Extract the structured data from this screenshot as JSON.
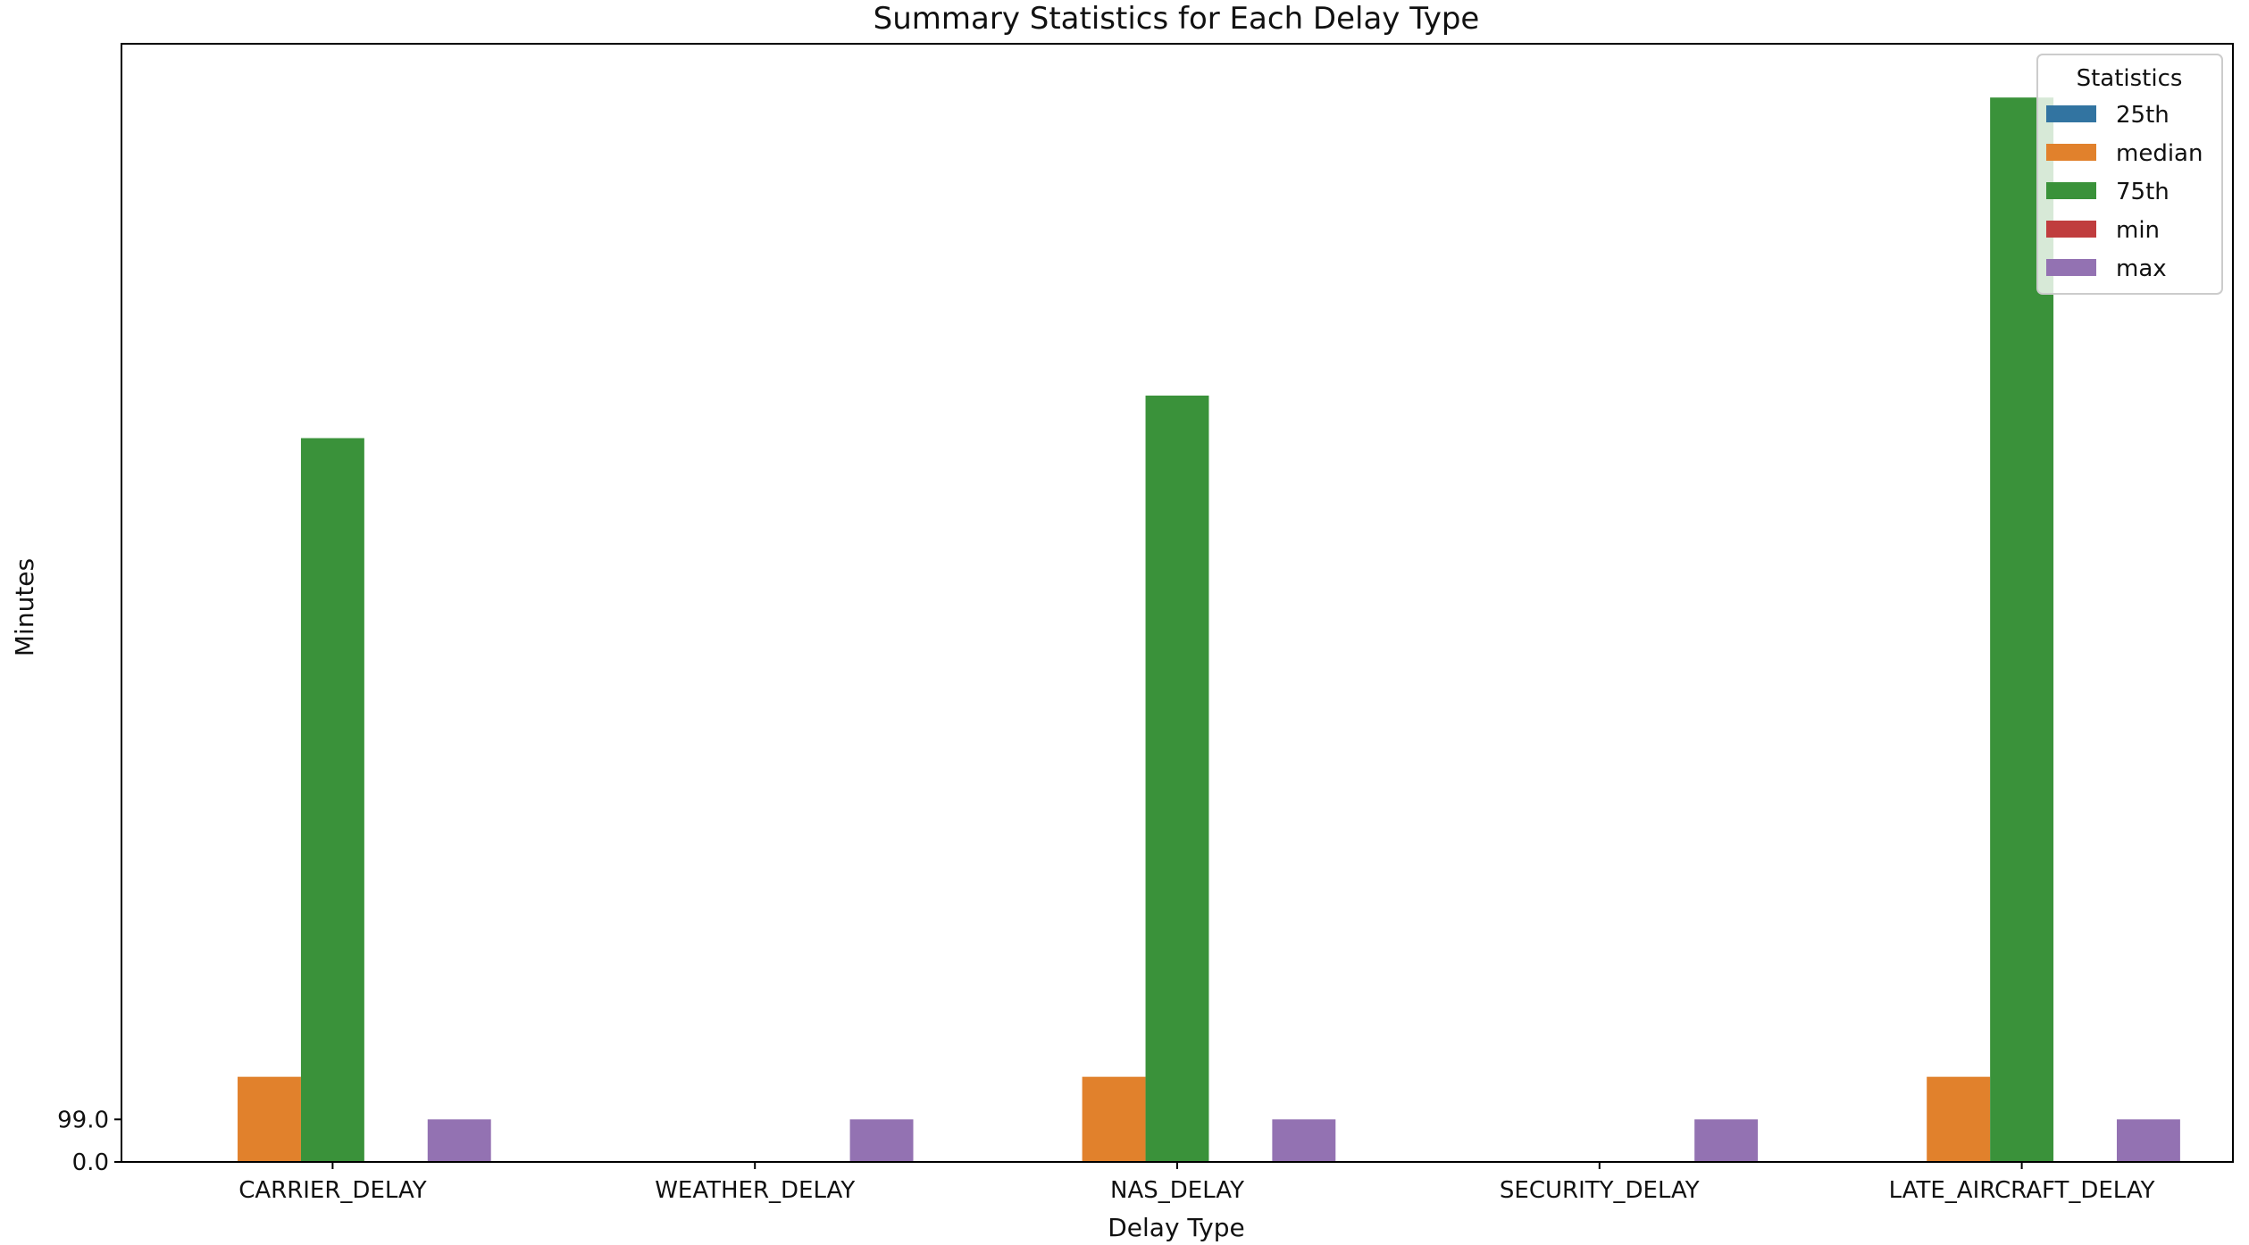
{
  "chart_data": {
    "type": "bar",
    "title": "Summary Statistics for Each Delay Type",
    "xlabel": "Delay Type",
    "ylabel": "Minutes",
    "categories": [
      "CARRIER_DELAY",
      "WEATHER_DELAY",
      "NAS_DELAY",
      "SECURITY_DELAY",
      "LATE_AIRCRAFT_DELAY"
    ],
    "yticks": [
      {
        "value": 0,
        "label": "0.0"
      },
      {
        "value": 99,
        "label": "99.0"
      }
    ],
    "ylim": [
      0,
      2600
    ],
    "grid": false,
    "legend": {
      "title": "Statistics",
      "position": "top-right"
    },
    "series": [
      {
        "name": "25th",
        "color": "#3274a1",
        "values": [
          0,
          0,
          0,
          0,
          0
        ]
      },
      {
        "name": "median",
        "color": "#e1812c",
        "values": [
          198,
          0,
          198,
          0,
          198
        ]
      },
      {
        "name": "75th",
        "color": "#3a923a",
        "values": [
          1683,
          0,
          1782,
          0,
          2475
        ]
      },
      {
        "name": "min",
        "color": "#c03d3e",
        "values": [
          0,
          0,
          0,
          0,
          0
        ]
      },
      {
        "name": "max",
        "color": "#9372b2",
        "values": [
          99,
          99,
          99,
          99,
          99
        ]
      }
    ]
  }
}
